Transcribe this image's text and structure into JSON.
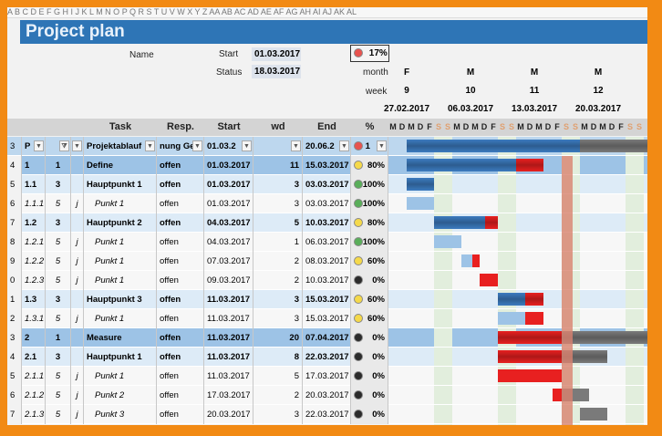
{
  "column_letters": "   A    B    C         D                  E              F              G              H           I     J K L M N O P Q R S T U V W X Y Z AA AB AC AD AE AF AG AH AI AJ AK AL",
  "title": "Project plan",
  "info": {
    "name_label": "Name",
    "start_label": "Start",
    "start_value": "01.03.2017",
    "status_label": "Status",
    "status_value": "18.03.2017",
    "overall_pct": "17%",
    "overall_status": "red",
    "month_label": "month",
    "week_label": "week"
  },
  "timeline": {
    "weeks": [
      {
        "month": "F",
        "week": "9",
        "date": "27.02.2017"
      },
      {
        "month": "M",
        "week": "10",
        "date": "06.03.2017"
      },
      {
        "month": "M",
        "week": "11",
        "date": "13.03.2017"
      },
      {
        "month": "M",
        "week": "12",
        "date": "20.03.2017"
      }
    ],
    "day_letters": [
      "M",
      "D",
      "M",
      "D",
      "F",
      "S",
      "S",
      "M",
      "D",
      "M",
      "D",
      "F",
      "S",
      "S",
      "M",
      "D",
      "M",
      "D",
      "F",
      "S",
      "S",
      "M",
      "D",
      "M",
      "D",
      "F",
      "S",
      "S"
    ],
    "first_day": "27.02.2017",
    "today": "18.03.2017"
  },
  "headers": {
    "task": "Task",
    "resp": "Resp.",
    "start": "Start",
    "wd": "wd",
    "end": "End",
    "pct": "%"
  },
  "filter_row": {
    "rownum": "3",
    "a": "P",
    "b": "",
    "task": "Projektablauf",
    "resp": "nung Ge",
    "start": "01.03.2",
    "end": "20.06.2",
    "pct": "1",
    "status": "red"
  },
  "colors": {
    "red": "#e8534f",
    "yellow": "#f5d94a",
    "green": "#5aae5a",
    "black": "#2b2b2b",
    "done": "#3c7bbf",
    "late": "#e82020",
    "future": "#7a7a7a",
    "today": "#d9826f"
  },
  "rows": [
    {
      "rownum": "4",
      "id": "1",
      "level": "1",
      "j": "",
      "task": "Define",
      "resp": "offen",
      "start": "01.03.2017",
      "wd": "11",
      "end": "15.03.2017",
      "status": "yellow",
      "pct": "80%"
    },
    {
      "rownum": "5",
      "id": "1.1",
      "level": "3",
      "j": "",
      "task": "Hauptpunkt 1",
      "resp": "offen",
      "start": "01.03.2017",
      "wd": "3",
      "end": "03.03.2017",
      "status": "green",
      "pct": "100%"
    },
    {
      "rownum": "6",
      "id": "1.1.1",
      "level": "5",
      "j": "j",
      "task": "Punkt 1",
      "resp": "offen",
      "start": "01.03.2017",
      "wd": "3",
      "end": "03.03.2017",
      "status": "green",
      "pct": "100%"
    },
    {
      "rownum": "7",
      "id": "1.2",
      "level": "3",
      "j": "",
      "task": "Hauptpunkt 2",
      "resp": "offen",
      "start": "04.03.2017",
      "wd": "5",
      "end": "10.03.2017",
      "status": "yellow",
      "pct": "80%"
    },
    {
      "rownum": "8",
      "id": "1.2.1",
      "level": "5",
      "j": "j",
      "task": "Punkt 1",
      "resp": "offen",
      "start": "04.03.2017",
      "wd": "1",
      "end": "06.03.2017",
      "status": "green",
      "pct": "100%"
    },
    {
      "rownum": "9",
      "id": "1.2.2",
      "level": "5",
      "j": "j",
      "task": "Punkt 1",
      "resp": "offen",
      "start": "07.03.2017",
      "wd": "2",
      "end": "08.03.2017",
      "status": "yellow",
      "pct": "60%"
    },
    {
      "rownum": "0",
      "id": "1.2.3",
      "level": "5",
      "j": "j",
      "task": "Punkt 1",
      "resp": "offen",
      "start": "09.03.2017",
      "wd": "2",
      "end": "10.03.2017",
      "status": "black",
      "pct": "0%"
    },
    {
      "rownum": "1",
      "id": "1.3",
      "level": "3",
      "j": "",
      "task": "Hauptpunkt 3",
      "resp": "offen",
      "start": "11.03.2017",
      "wd": "3",
      "end": "15.03.2017",
      "status": "yellow",
      "pct": "60%"
    },
    {
      "rownum": "2",
      "id": "1.3.1",
      "level": "5",
      "j": "j",
      "task": "Punkt 1",
      "resp": "offen",
      "start": "11.03.2017",
      "wd": "3",
      "end": "15.03.2017",
      "status": "yellow",
      "pct": "60%"
    },
    {
      "rownum": "3",
      "id": "2",
      "level": "1",
      "j": "",
      "task": "Measure",
      "resp": "offen",
      "start": "11.03.2017",
      "wd": "20",
      "end": "07.04.2017",
      "status": "black",
      "pct": "0%"
    },
    {
      "rownum": "4",
      "id": "2.1",
      "level": "3",
      "j": "",
      "task": "Hauptpunkt 1",
      "resp": "offen",
      "start": "11.03.2017",
      "wd": "8",
      "end": "22.03.2017",
      "status": "black",
      "pct": "0%"
    },
    {
      "rownum": "5",
      "id": "2.1.1",
      "level": "5",
      "j": "j",
      "task": "Punkt 1",
      "resp": "offen",
      "start": "11.03.2017",
      "wd": "5",
      "end": "17.03.2017",
      "status": "black",
      "pct": "0%"
    },
    {
      "rownum": "6",
      "id": "2.1.2",
      "level": "5",
      "j": "j",
      "task": "Punkt 2",
      "resp": "offen",
      "start": "17.03.2017",
      "wd": "2",
      "end": "20.03.2017",
      "status": "black",
      "pct": "0%"
    },
    {
      "rownum": "7",
      "id": "2.1.3",
      "level": "5",
      "j": "j",
      "task": "Punkt 3",
      "resp": "offen",
      "start": "20.03.2017",
      "wd": "3",
      "end": "22.03.2017",
      "status": "black",
      "pct": "0%"
    }
  ]
}
